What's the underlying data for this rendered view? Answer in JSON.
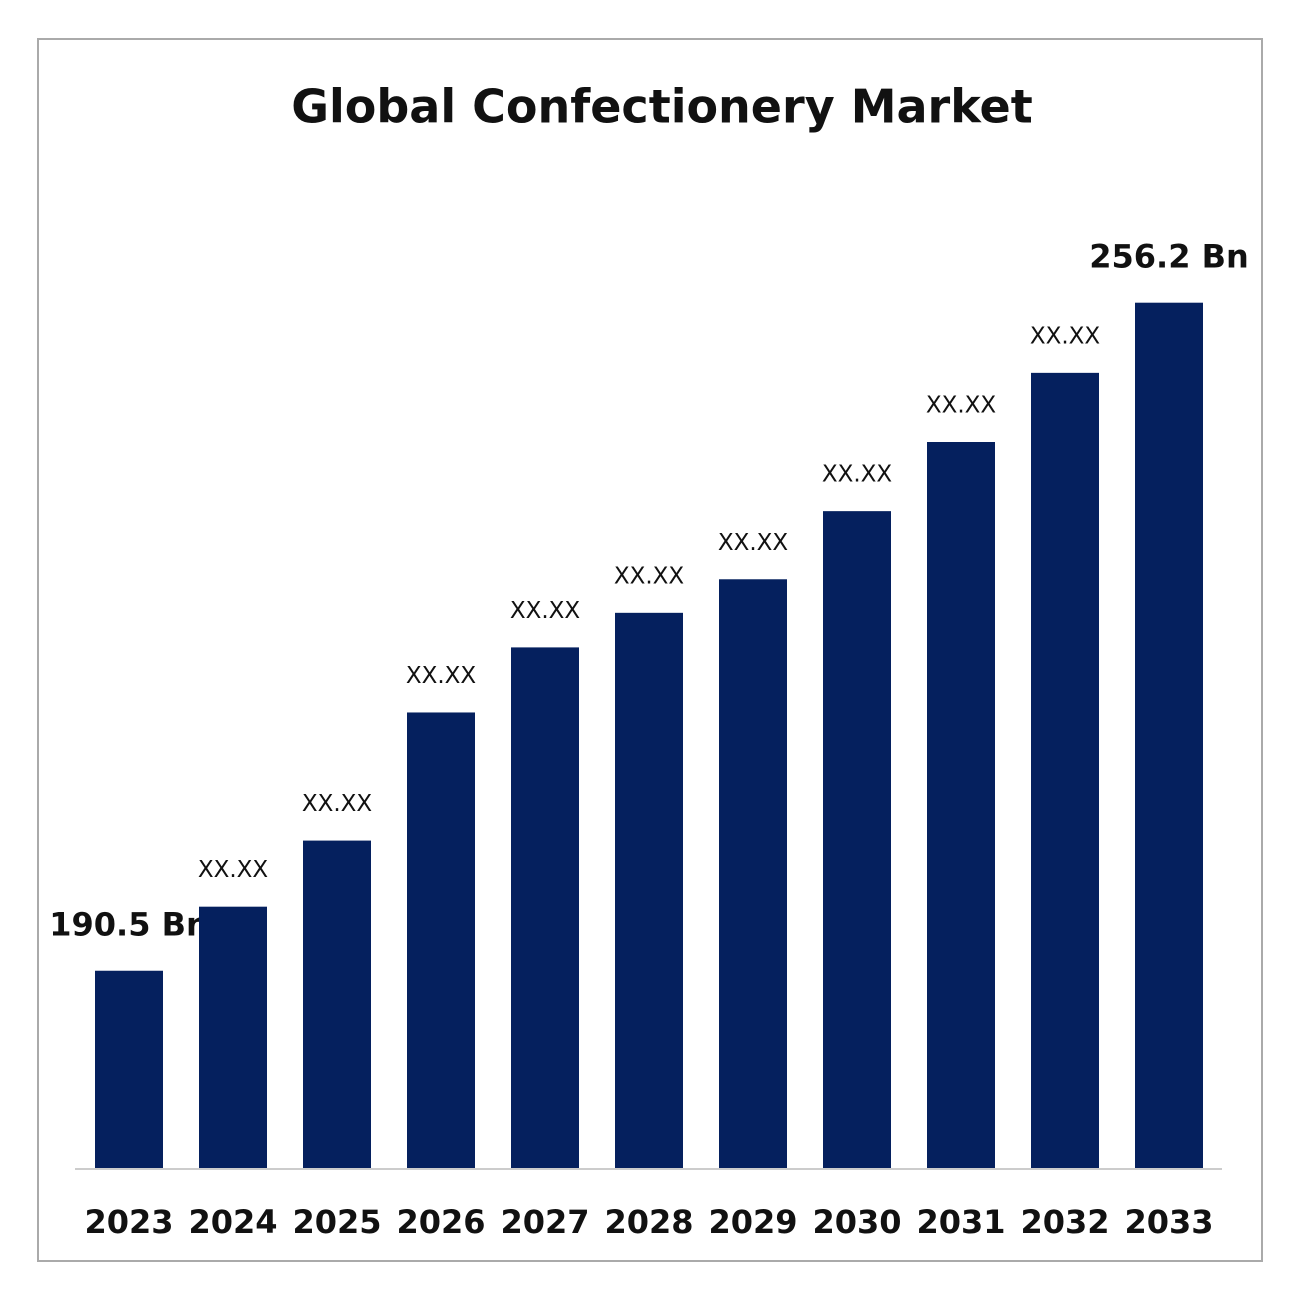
{
  "chart_data": {
    "type": "bar",
    "title": "Global Confectionery Market",
    "categories": [
      "2023",
      "2024",
      "2025",
      "2026",
      "2027",
      "2028",
      "2029",
      "2030",
      "2031",
      "2032",
      "2033"
    ],
    "values": [
      190.5,
      196.8,
      203.3,
      215.9,
      222.3,
      225.7,
      229.0,
      235.7,
      242.5,
      249.3,
      256.2
    ],
    "value_labels": [
      "190.5 Bn",
      "XX.XX",
      "XX.XX",
      "XX.XX",
      "XX.XX",
      "XX.XX",
      "XX.XX",
      "XX.XX",
      "XX.XX",
      "XX.XX",
      "256.2 Bn"
    ],
    "color": "#05205e",
    "ylim": [
      171.1,
      266.3
    ]
  }
}
